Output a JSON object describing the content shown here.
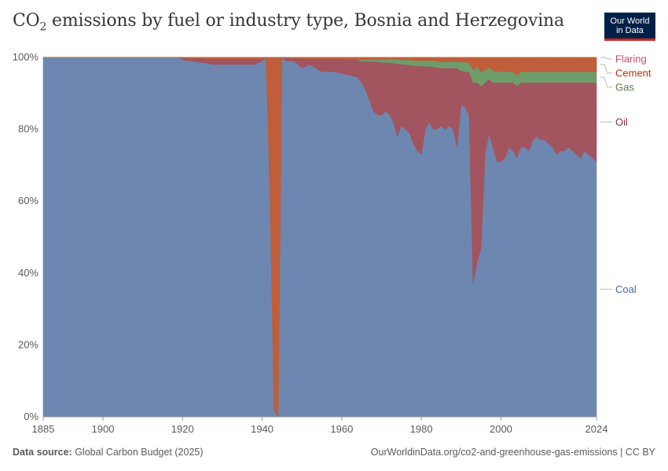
{
  "header": {
    "title_prefix": "CO",
    "title_sub": "2",
    "title_rest": " emissions by fuel or industry type, Bosnia and Herzegovina",
    "logo_line1": "Our World",
    "logo_line2": "in Data"
  },
  "footer": {
    "source_label": "Data source:",
    "source_value": " Global Carbon Budget (2025)",
    "credit": "OurWorldinData.org/co2-and-greenhouse-gas-emissions | CC BY"
  },
  "chart_data": {
    "type": "area",
    "stacking": "percent",
    "title": "CO2 emissions by fuel or industry type, Bosnia and Herzegovina",
    "xlim": [
      1885,
      2024
    ],
    "ylim": [
      0,
      100
    ],
    "x_ticks": [
      1885,
      1900,
      1920,
      1940,
      1960,
      1980,
      2000,
      2024
    ],
    "y_ticks": [
      "0%",
      "20%",
      "40%",
      "60%",
      "80%",
      "100%"
    ],
    "y_tick_values": [
      0,
      20,
      40,
      60,
      80,
      100
    ],
    "legend_position": "right",
    "series": [
      {
        "name": "Coal",
        "color": "#6d87b0",
        "label_color": "#4c6a9c"
      },
      {
        "name": "Oil",
        "color": "#a2545f",
        "label_color": "#883039"
      },
      {
        "name": "Gas",
        "color": "#6e9c6a",
        "label_color": "#578145"
      },
      {
        "name": "Cement",
        "color": "#c05d3a",
        "label_color": "#b13507"
      },
      {
        "name": "Flaring",
        "color": "#d4823e",
        "label_color": "#c15065"
      }
    ],
    "x": [
      1885,
      1890,
      1900,
      1910,
      1919,
      1920,
      1921,
      1922,
      1925,
      1928,
      1930,
      1932,
      1935,
      1938,
      1940,
      1941,
      1942,
      1943,
      1944,
      1945,
      1946,
      1948,
      1950,
      1952,
      1955,
      1958,
      1960,
      1962,
      1964,
      1965,
      1966,
      1967,
      1968,
      1969,
      1970,
      1971,
      1972,
      1973,
      1974,
      1975,
      1976,
      1977,
      1978,
      1979,
      1980,
      1981,
      1982,
      1983,
      1984,
      1985,
      1986,
      1987,
      1988,
      1989,
      1990,
      1991,
      1992,
      1993,
      1994,
      1995,
      1996,
      1997,
      1998,
      1999,
      2000,
      2001,
      2002,
      2003,
      2004,
      2005,
      2006,
      2007,
      2008,
      2009,
      2010,
      2011,
      2012,
      2013,
      2014,
      2015,
      2016,
      2017,
      2018,
      2019,
      2020,
      2021,
      2022,
      2023,
      2024
    ],
    "coal": [
      100,
      100,
      100,
      100,
      100,
      99.5,
      99,
      99,
      98.5,
      98,
      98,
      98,
      98,
      98,
      99,
      100,
      60,
      2,
      0,
      100,
      99,
      99,
      97,
      98,
      96,
      96,
      95.5,
      95,
      94.5,
      93,
      91,
      88,
      85,
      84,
      84,
      85,
      84,
      82,
      78,
      81,
      80,
      79,
      76,
      74,
      73,
      80,
      82,
      80,
      80,
      81,
      80,
      81,
      80,
      75,
      87,
      86,
      84,
      37,
      43,
      47,
      73,
      79,
      75,
      71,
      71,
      72,
      75,
      74,
      72,
      75,
      75,
      74,
      77,
      78,
      77,
      77,
      76,
      75,
      73,
      74,
      74,
      75,
      74,
      73,
      72,
      74,
      73,
      72,
      71
    ],
    "oil": [
      0,
      0,
      0,
      0,
      0,
      0.5,
      0.8,
      0.8,
      1.2,
      1.6,
      1.5,
      1.5,
      1.5,
      1.5,
      0.5,
      0,
      1,
      1,
      0,
      0,
      0.8,
      0.8,
      2.6,
      1.6,
      3.6,
      3.6,
      4.0,
      4.4,
      4.9,
      5.9,
      7.9,
      10.9,
      13.8,
      14.8,
      14.6,
      13.6,
      14.6,
      16.4,
      20.2,
      17.1,
      18.0,
      18.9,
      21.7,
      23.6,
      24.6,
      17.5,
      15.5,
      17.4,
      17.1,
      16.0,
      17.0,
      16.0,
      17.0,
      22.0,
      9.2,
      10.0,
      11.9,
      56,
      50,
      45,
      20,
      15,
      18,
      22,
      22,
      21,
      18,
      19,
      20,
      18,
      18,
      19,
      16,
      15,
      16,
      16,
      17,
      18,
      20,
      19,
      19,
      18,
      19,
      20,
      21,
      19,
      20,
      21,
      22
    ],
    "gas": [
      0,
      0,
      0,
      0,
      0,
      0,
      0,
      0,
      0,
      0,
      0,
      0,
      0,
      0,
      0,
      0,
      0,
      0,
      0,
      0,
      0,
      0,
      0,
      0,
      0,
      0,
      0,
      0,
      0,
      0.5,
      0.5,
      0.5,
      0.6,
      0.6,
      0.8,
      0.8,
      1.0,
      1.0,
      1.2,
      1.2,
      1.3,
      1.4,
      1.4,
      1.5,
      1.5,
      1.6,
      1.6,
      1.7,
      1.8,
      1.8,
      1.8,
      1.8,
      1.8,
      1.8,
      2.5,
      2.6,
      2.7,
      3.5,
      4.5,
      4.0,
      3.5,
      3.2,
      3.3,
      3.1,
      3.0,
      3.0,
      3.0,
      3.0,
      3.0,
      3.0,
      3.0,
      3.0,
      3.0,
      3.0,
      3.0,
      3.0,
      3.0,
      3.0,
      3.0,
      3.0,
      3.0,
      3.0,
      3.0,
      3.0,
      3.0,
      3.0,
      3.0,
      3.0,
      3.0
    ],
    "cement": [
      0,
      0,
      0,
      0,
      0,
      0,
      0.2,
      0.2,
      0.3,
      0.4,
      0.5,
      0.5,
      0.5,
      0.5,
      0.5,
      0,
      39,
      97,
      100,
      0,
      0.2,
      0.2,
      0.4,
      0.4,
      0.4,
      0.4,
      0.5,
      0.6,
      0.6,
      0.6,
      0.6,
      0.6,
      0.6,
      0.6,
      0.6,
      0.6,
      0.4,
      0.6,
      0.6,
      0.7,
      0.7,
      0.7,
      0.9,
      0.9,
      0.9,
      0.9,
      0.9,
      0.9,
      1.1,
      1.2,
      1.2,
      1.2,
      1.2,
      1.2,
      1.3,
      1.4,
      1.4,
      3.5,
      2.5,
      4.0,
      3.5,
      2.8,
      3.7,
      3.9,
      4.0,
      4.0,
      4.0,
      4.0,
      5.0,
      4.0,
      4.0,
      4.0,
      4.0,
      4.0,
      4.0,
      4.0,
      4.0,
      4.0,
      4.0,
      4.0,
      4.0,
      4.0,
      4.0,
      4.0,
      4.0,
      4.0,
      4.0,
      4.0,
      4.0
    ],
    "flaring": [
      0,
      0,
      0,
      0,
      0,
      0,
      0,
      0,
      0,
      0,
      0,
      0,
      0,
      0,
      0,
      0,
      0,
      0,
      0,
      0,
      0,
      0,
      0,
      0,
      0,
      0,
      0,
      0,
      0,
      0,
      0,
      0,
      0,
      0,
      0,
      0,
      0,
      0,
      0,
      0,
      0,
      0,
      0,
      0,
      0,
      0,
      0,
      0,
      0,
      0,
      0,
      0,
      0,
      0,
      0,
      0,
      0,
      0,
      0,
      0,
      0,
      0,
      0,
      0,
      0,
      0,
      0,
      0,
      0,
      0,
      0,
      0,
      0,
      0,
      0,
      0,
      0,
      0,
      0,
      0,
      0,
      0,
      0,
      0,
      0,
      0,
      0,
      0,
      0
    ]
  }
}
